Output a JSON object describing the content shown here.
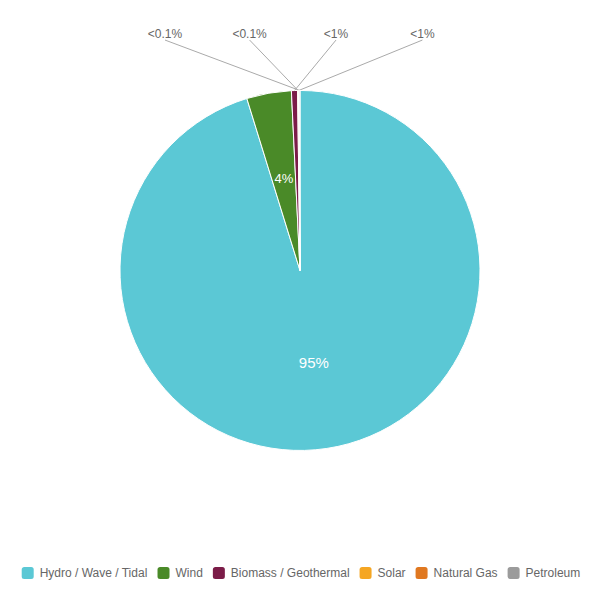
{
  "chart_data": {
    "type": "pie",
    "categories": [
      "Hydro / Wave / Tidal",
      "Wind",
      "Biomass / Geothermal",
      "Solar",
      "Natural Gas",
      "Petroleum"
    ],
    "values": [
      95.0,
      4.0,
      0.55,
      0.07,
      0.07,
      0.07
    ],
    "value_labels": [
      "95%",
      "4%",
      "<1%",
      "<0.1%",
      "<1%",
      "<0.1%"
    ],
    "colors": [
      "#5BC8D5",
      "#4A8A28",
      "#7B1C48",
      "#F5A623",
      "#E07820",
      "#9B9B9B"
    ],
    "legend": "bottom",
    "data_labels": true
  }
}
